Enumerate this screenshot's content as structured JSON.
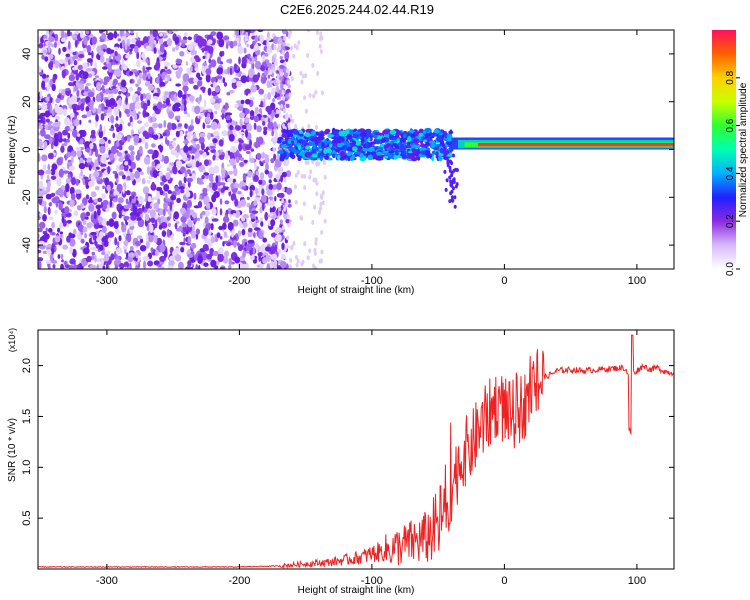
{
  "title": "C2E6.2025.244.02.44.R19",
  "colors": {
    "spectrogram_low": "#a78bfa",
    "spectrogram_mid": "#6d28d9",
    "snr_line": "#ee2222"
  },
  "chart_data": [
    {
      "type": "heatmap",
      "title": "C2E6.2025.244.02.44.R19",
      "xlabel": "Height of straight line (km)",
      "ylabel": "Frequency (Hz)",
      "xlim": [
        -352,
        128
      ],
      "ylim": [
        -50,
        50
      ],
      "xticks": [
        -300,
        -200,
        -100,
        0,
        100
      ],
      "yticks": [
        -40,
        -20,
        0,
        20,
        40
      ],
      "colorbar": {
        "label": "Normalized spectral amplitude",
        "range": [
          0,
          1
        ],
        "ticks": [
          0.0,
          0.2,
          0.4,
          0.6,
          0.8
        ],
        "tick_labels": [
          "0.0",
          "0.2",
          "0.4",
          "0.6",
          "0.8"
        ],
        "colormap": [
          "#ffffff",
          "#7a2fe0",
          "#3a1fff",
          "#00b0ff",
          "#00ffb0",
          "#30ff30",
          "#c8ff00",
          "#ffd000",
          "#ff7000",
          "#ff1050"
        ]
      },
      "features": [
        {
          "x_range": [
            -352,
            -170
          ],
          "freq_range": [
            -50,
            50
          ],
          "amplitude": 0.05,
          "description": "broadband scattered noise"
        },
        {
          "x_range": [
            -170,
            -40
          ],
          "freq_range": [
            -5,
            10
          ],
          "amplitude": 0.35,
          "description": "broadened band around 0 Hz"
        },
        {
          "x_range": [
            -40,
            128
          ],
          "freq_range": [
            0,
            4
          ],
          "amplitude": 0.95,
          "description": "narrow strong carrier line near 2 Hz"
        }
      ]
    },
    {
      "type": "line",
      "xlabel": "Height of straight line (km)",
      "ylabel": "SNR (10 * v/v)",
      "y_multiplier": "(x10⁴)",
      "xlim": [
        -352,
        128
      ],
      "ylim": [
        0,
        2.35
      ],
      "xticks": [
        -300,
        -200,
        -100,
        0,
        100
      ],
      "yticks": [
        0.5,
        1.0,
        1.5,
        2.0
      ],
      "ytick_labels": [
        "0.5",
        "1.0",
        "1.5",
        "2.0"
      ],
      "series": [
        {
          "x": [
            -352,
            -300,
            -250,
            -200,
            -170,
            -150,
            -130,
            -110,
            -100,
            -90,
            -80,
            -70,
            -60,
            -50,
            -45,
            -40,
            -35,
            -30,
            -25,
            -20,
            -15,
            -10,
            -5,
            0,
            5,
            10,
            15,
            20,
            25,
            30,
            40,
            50,
            60,
            70,
            80,
            90,
            95,
            100,
            105,
            110,
            115,
            120,
            125
          ],
          "y": [
            0.02,
            0.02,
            0.02,
            0.02,
            0.03,
            0.05,
            0.07,
            0.11,
            0.15,
            0.18,
            0.22,
            0.26,
            0.3,
            0.42,
            0.55,
            0.8,
            1.0,
            1.15,
            1.2,
            1.35,
            1.45,
            1.55,
            1.65,
            1.55,
            1.5,
            1.55,
            1.62,
            1.72,
            1.82,
            1.88,
            1.95,
            1.96,
            1.95,
            1.96,
            1.97,
            1.98,
            1.9,
            1.95,
            2.0,
            1.96,
            1.98,
            1.95,
            1.93
          ]
        }
      ]
    }
  ]
}
